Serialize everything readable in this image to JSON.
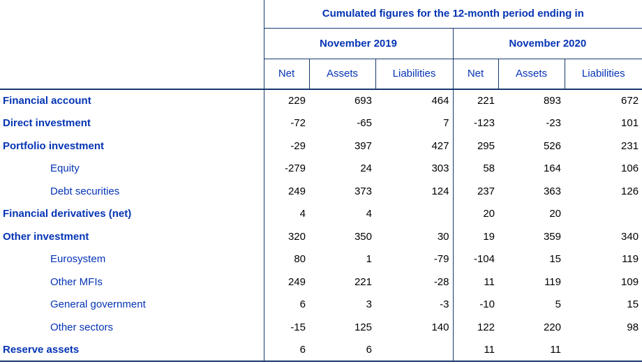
{
  "table": {
    "title": "Cumulated figures for the 12-month period ending in",
    "period_groups": [
      {
        "label": "November 2019",
        "columns": [
          "Net",
          "Assets",
          "Liabilities"
        ]
      },
      {
        "label": "November 2020",
        "columns": [
          "Net",
          "Assets",
          "Liabilities"
        ]
      }
    ],
    "rows": [
      {
        "label": "Financial account",
        "style": "section",
        "values": [
          "229",
          "693",
          "464",
          "221",
          "893",
          "672"
        ]
      },
      {
        "label": "Direct investment",
        "style": "section",
        "values": [
          "-72",
          "-65",
          "7",
          "-123",
          "-23",
          "101"
        ]
      },
      {
        "label": "Portfolio investment",
        "style": "section",
        "values": [
          "-29",
          "397",
          "427",
          "295",
          "526",
          "231"
        ]
      },
      {
        "label": "Equity",
        "style": "sub",
        "values": [
          "-279",
          "24",
          "303",
          "58",
          "164",
          "106"
        ]
      },
      {
        "label": "Debt securities",
        "style": "sub",
        "values": [
          "249",
          "373",
          "124",
          "237",
          "363",
          "126"
        ]
      },
      {
        "label": "Financial derivatives (net)",
        "style": "section",
        "values": [
          "4",
          "4",
          "",
          "20",
          "20",
          ""
        ]
      },
      {
        "label": "Other investment",
        "style": "section",
        "values": [
          "320",
          "350",
          "30",
          "19",
          "359",
          "340"
        ]
      },
      {
        "label": "Eurosystem",
        "style": "sub",
        "values": [
          "80",
          "1",
          "-79",
          "-104",
          "15",
          "119"
        ]
      },
      {
        "label": "Other MFIs",
        "style": "sub",
        "values": [
          "249",
          "221",
          "-28",
          "11",
          "119",
          "109"
        ]
      },
      {
        "label": "General government",
        "style": "sub",
        "values": [
          "6",
          "3",
          "-3",
          "-10",
          "5",
          "15"
        ]
      },
      {
        "label": "Other sectors",
        "style": "sub",
        "values": [
          "-15",
          "125",
          "140",
          "122",
          "220",
          "98"
        ]
      },
      {
        "label": "Reserve assets",
        "style": "section",
        "values": [
          "6",
          "6",
          "",
          "11",
          "11",
          ""
        ]
      }
    ]
  },
  "colors": {
    "text_blue": "#0534b4",
    "border_blue": "#17386e",
    "value_black": "#000000"
  }
}
